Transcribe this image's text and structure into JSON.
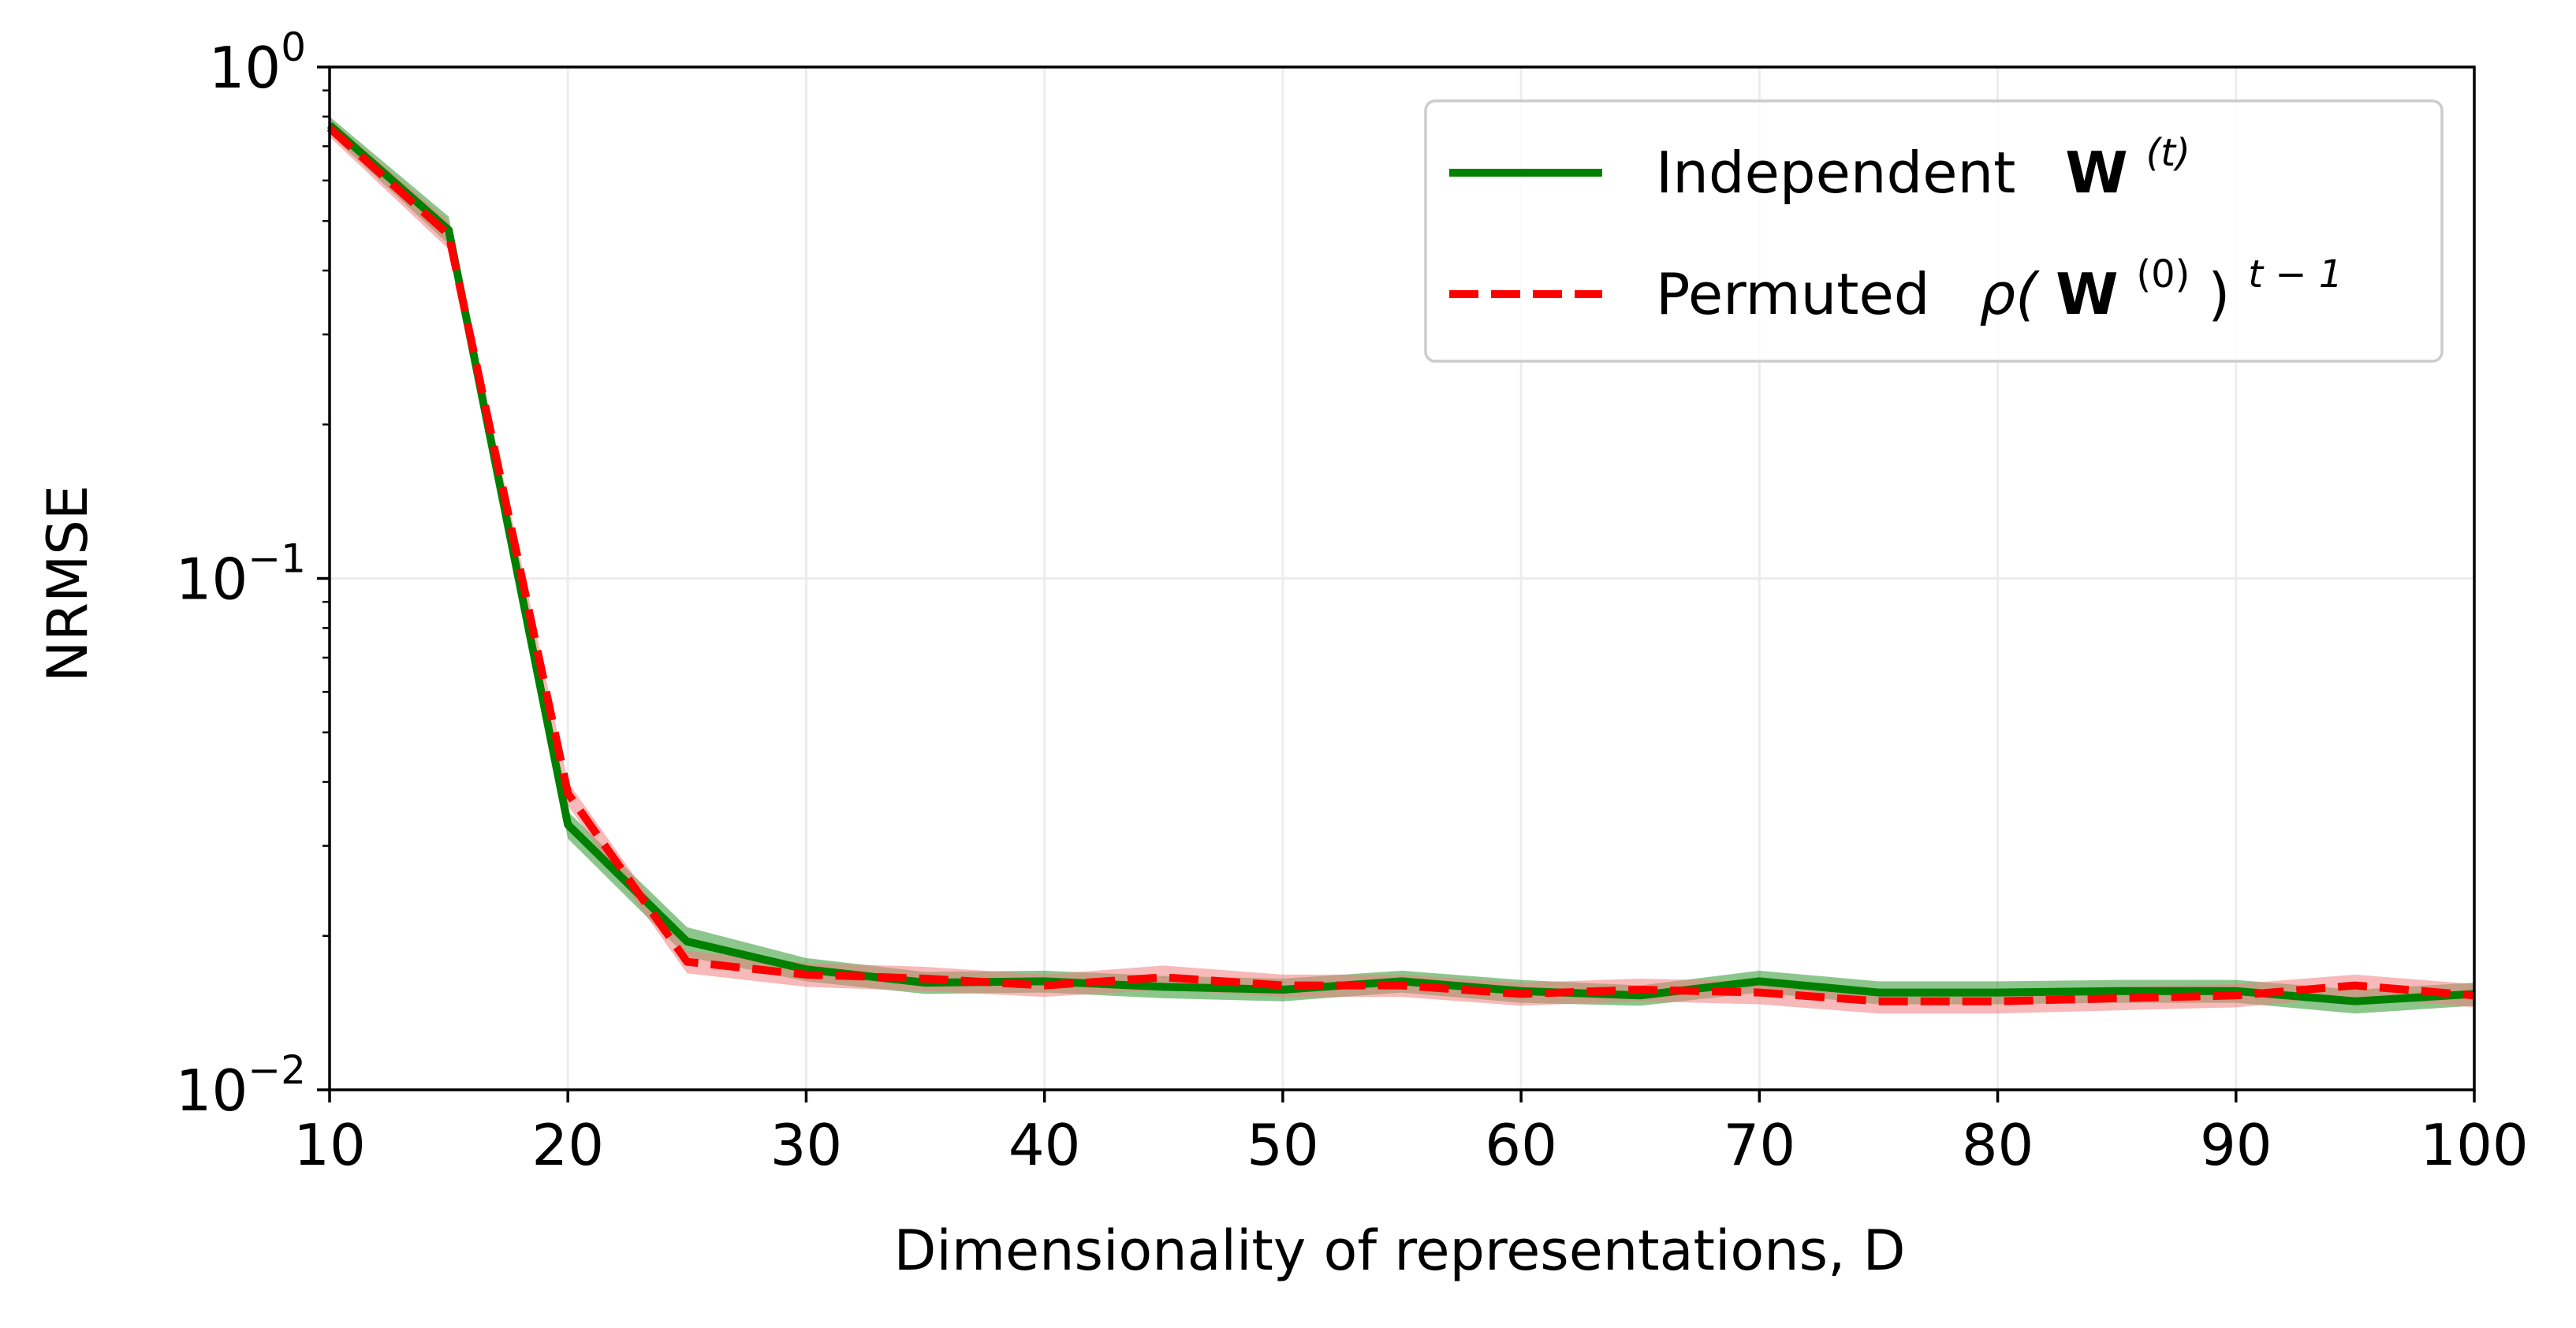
{
  "chart_data": {
    "type": "line",
    "xlabel": "Dimensionality of representations, D",
    "ylabel": "NRMSE",
    "xlim": [
      10,
      100
    ],
    "ylim": [
      0.01,
      1
    ],
    "yscale": "log",
    "grid": true,
    "legend_position": "upper-right",
    "x_ticks": [
      "10",
      "20",
      "30",
      "40",
      "50",
      "60",
      "70",
      "80",
      "90",
      "100"
    ],
    "y_tick_labels": [
      {
        "value": 1,
        "base": "10",
        "exp": "0"
      },
      {
        "value": 0.1,
        "base": "10",
        "exp": "−1"
      },
      {
        "value": 0.01,
        "base": "10",
        "exp": "−2"
      }
    ],
    "x": [
      10,
      15,
      20,
      25,
      30,
      35,
      40,
      45,
      50,
      55,
      60,
      65,
      70,
      75,
      80,
      85,
      90,
      95,
      100
    ],
    "series": [
      {
        "name": "Independent W(t)",
        "label_text": "Independent",
        "label_math": "W",
        "label_sup": "(t)",
        "color": "#008000",
        "style": "solid",
        "values": [
          0.77,
          0.48,
          0.033,
          0.0195,
          0.0172,
          0.0162,
          0.0163,
          0.0159,
          0.0157,
          0.0163,
          0.0156,
          0.0153,
          0.0163,
          0.0155,
          0.0155,
          0.0156,
          0.0156,
          0.0149,
          0.0154
        ],
        "band_low": [
          0.74,
          0.45,
          0.031,
          0.0182,
          0.0163,
          0.0154,
          0.0155,
          0.0151,
          0.0149,
          0.0155,
          0.0148,
          0.0146,
          0.0155,
          0.0147,
          0.0147,
          0.0148,
          0.0148,
          0.0141,
          0.0146
        ],
        "band_high": [
          0.8,
          0.51,
          0.035,
          0.0208,
          0.0181,
          0.017,
          0.0171,
          0.0167,
          0.0165,
          0.0171,
          0.0164,
          0.016,
          0.0171,
          0.0163,
          0.0163,
          0.0164,
          0.0164,
          0.0157,
          0.0162
        ]
      },
      {
        "name": "Permuted ρ(W(0))t−1",
        "label_text": "Permuted",
        "label_rho": "ρ(",
        "label_math": "W",
        "label_sup": "(0)",
        "label_close": ")",
        "label_sup2": "t − 1",
        "color": "#ff0000",
        "band_color": "#f08080",
        "style": "dashed",
        "values": [
          0.76,
          0.47,
          0.038,
          0.0178,
          0.0168,
          0.0165,
          0.016,
          0.0166,
          0.016,
          0.016,
          0.0154,
          0.0157,
          0.0155,
          0.0149,
          0.0149,
          0.0151,
          0.0153,
          0.016,
          0.0153
        ],
        "band_low": [
          0.73,
          0.44,
          0.036,
          0.0169,
          0.0159,
          0.0156,
          0.0152,
          0.0157,
          0.0152,
          0.0152,
          0.0146,
          0.0149,
          0.0147,
          0.0141,
          0.0141,
          0.0143,
          0.0145,
          0.0152,
          0.0145
        ],
        "band_high": [
          0.79,
          0.5,
          0.04,
          0.0187,
          0.0177,
          0.0174,
          0.0168,
          0.0175,
          0.0168,
          0.0168,
          0.0162,
          0.0165,
          0.0163,
          0.0157,
          0.0157,
          0.0159,
          0.0161,
          0.0168,
          0.0161
        ]
      }
    ]
  }
}
